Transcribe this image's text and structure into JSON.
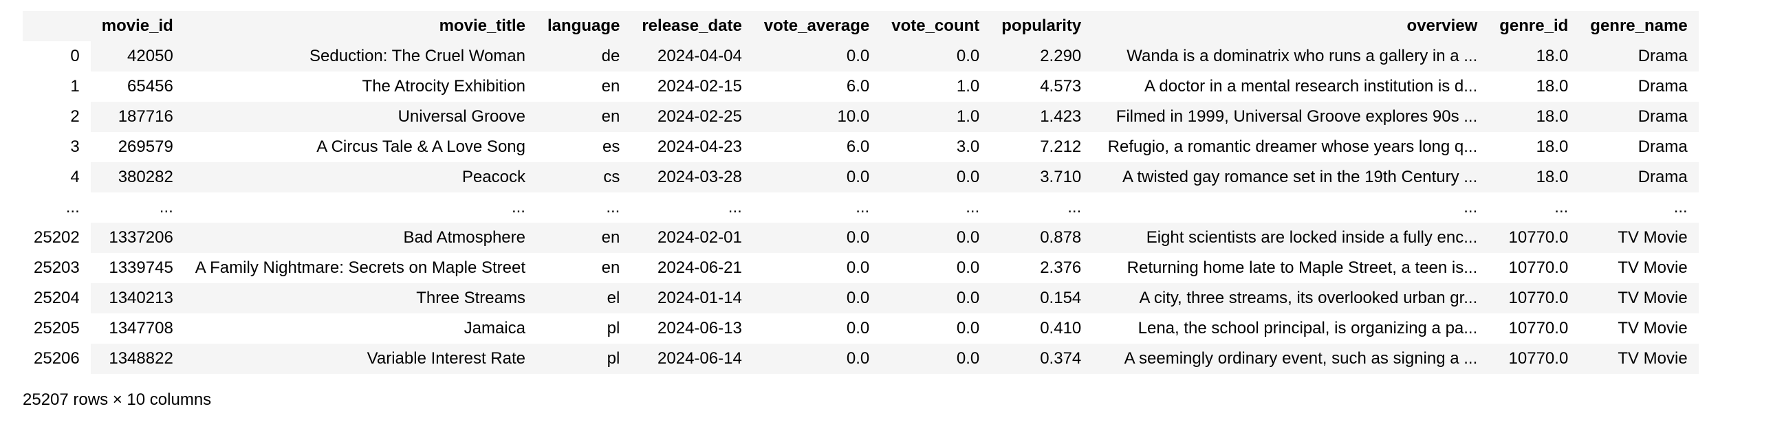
{
  "columns": [
    "",
    "movie_id",
    "movie_title",
    "language",
    "release_date",
    "vote_average",
    "vote_count",
    "popularity",
    "overview",
    "genre_id",
    "genre_name"
  ],
  "rows": [
    [
      "0",
      "42050",
      "Seduction: The Cruel Woman",
      "de",
      "2024-04-04",
      "0.0",
      "0.0",
      "2.290",
      "Wanda is a dominatrix who runs a gallery in a ...",
      "18.0",
      "Drama"
    ],
    [
      "1",
      "65456",
      "The Atrocity Exhibition",
      "en",
      "2024-02-15",
      "6.0",
      "1.0",
      "4.573",
      "A doctor in a mental research institution is d...",
      "18.0",
      "Drama"
    ],
    [
      "2",
      "187716",
      "Universal Groove",
      "en",
      "2024-02-25",
      "10.0",
      "1.0",
      "1.423",
      "Filmed in 1999, Universal Groove explores 90s ...",
      "18.0",
      "Drama"
    ],
    [
      "3",
      "269579",
      "A Circus Tale & A Love Song",
      "es",
      "2024-04-23",
      "6.0",
      "3.0",
      "7.212",
      "Refugio, a romantic dreamer whose years long q...",
      "18.0",
      "Drama"
    ],
    [
      "4",
      "380282",
      "Peacock",
      "cs",
      "2024-03-28",
      "0.0",
      "0.0",
      "3.710",
      "A twisted gay romance set in the 19th Century ...",
      "18.0",
      "Drama"
    ],
    [
      "...",
      "...",
      "...",
      "...",
      "...",
      "...",
      "...",
      "...",
      "...",
      "...",
      "..."
    ],
    [
      "25202",
      "1337206",
      "Bad Atmosphere",
      "en",
      "2024-02-01",
      "0.0",
      "0.0",
      "0.878",
      "Eight scientists are locked inside a fully enc...",
      "10770.0",
      "TV Movie"
    ],
    [
      "25203",
      "1339745",
      "A Family Nightmare: Secrets on Maple Street",
      "en",
      "2024-06-21",
      "0.0",
      "0.0",
      "2.376",
      "Returning home late to Maple Street, a teen is...",
      "10770.0",
      "TV Movie"
    ],
    [
      "25204",
      "1340213",
      "Three Streams",
      "el",
      "2024-01-14",
      "0.0",
      "0.0",
      "0.154",
      "A city, three streams, its overlooked urban gr...",
      "10770.0",
      "TV Movie"
    ],
    [
      "25205",
      "1347708",
      "Jamaica",
      "pl",
      "2024-06-13",
      "0.0",
      "0.0",
      "0.410",
      "Lena, the school principal, is organizing a pa...",
      "10770.0",
      "TV Movie"
    ],
    [
      "25206",
      "1348822",
      "Variable Interest Rate",
      "pl",
      "2024-06-14",
      "0.0",
      "0.0",
      "0.374",
      "A seemingly ordinary event, such as signing a ...",
      "10770.0",
      "TV Movie"
    ]
  ],
  "summary": "25207 rows × 10 columns"
}
